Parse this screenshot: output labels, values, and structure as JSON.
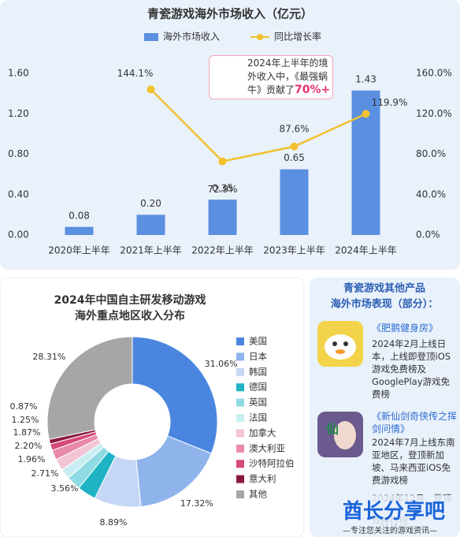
{
  "chart_data": [
    {
      "type": "bar",
      "title": "青瓷游戏海外市场收入（亿元）",
      "categories": [
        "2020年上半年",
        "2021年上半年",
        "2022年上半年",
        "2023年上半年",
        "2024年上半年"
      ],
      "series": [
        {
          "name": "海外市场收入",
          "type": "bar",
          "color": "#5b8fe0",
          "values": [
            0.08,
            0.2,
            0.35,
            0.65,
            1.43
          ],
          "value_labels": [
            "0.08",
            "0.20",
            "0.35",
            "0.65",
            "1.43"
          ]
        },
        {
          "name": "同比增长率",
          "type": "line",
          "axis": "y2",
          "color": "#f2c12e",
          "values": [
            null,
            144.1,
            72.9,
            87.6,
            119.9
          ],
          "value_labels": [
            null,
            "144.1%",
            "72.9%",
            "87.6%",
            "119.9%"
          ]
        }
      ],
      "ylim": [
        0,
        1.6
      ],
      "yticks": [
        {
          "value": 0,
          "label": "0.00"
        },
        {
          "value": 0.4,
          "label": "0.40"
        },
        {
          "value": 0.8,
          "label": "0.80"
        },
        {
          "value": 1.2,
          "label": "1.20"
        },
        {
          "value": 1.6,
          "label": "1.60"
        }
      ],
      "y2lim": [
        0,
        160
      ],
      "y2ticks": [
        {
          "value": 0,
          "label": "0.0%"
        },
        {
          "value": 40,
          "label": "40.0%"
        },
        {
          "value": 80,
          "label": "80.0%"
        },
        {
          "value": 120,
          "label": "120.0%"
        },
        {
          "value": 160,
          "label": "160.0%"
        }
      ],
      "grid": false,
      "legend": "top",
      "annotation": {
        "text": "2024年上半年的境外收入中，《最强蜗牛》贡献了",
        "highlight": "70%+"
      }
    },
    {
      "type": "pie",
      "title": [
        "2024年中国自主研发移动游戏",
        "海外重点地区收入分布"
      ],
      "categories": [
        "美国",
        "日本",
        "韩国",
        "德国",
        "英国",
        "法国",
        "加拿大",
        "澳大利亚",
        "沙特阿拉伯",
        "意大利",
        "其他"
      ],
      "values": [
        31.06,
        17.32,
        8.89,
        3.56,
        2.71,
        1.96,
        2.2,
        1.87,
        1.25,
        0.87,
        28.31
      ],
      "value_labels": [
        "31.06%",
        "17.32%",
        "8.89%",
        "3.56%",
        "2.71%",
        "1.96%",
        "2.20%",
        "1.87%",
        "1.25%",
        "0.87%",
        "28.31%"
      ],
      "colors": [
        "#4a86e0",
        "#8fb4ec",
        "#c5d7f5",
        "#1fb3c4",
        "#8fdbe3",
        "#c8eef2",
        "#f2c4d4",
        "#e88aa8",
        "#d64a7a",
        "#8b1a3a",
        "#a6a6a6"
      ],
      "legend": "right"
    }
  ],
  "side_panel": {
    "title": [
      "青瓷游戏其他产品",
      "海外市场表现（部分）："
    ],
    "items": [
      {
        "name": "《肥鹅健身房》",
        "text": "2024年2月上线日本，上线即登顶iOS游戏免费榜及GooglePlay游戏免费榜"
      },
      {
        "name": "《新仙剑奇侠传之挥剑问情》",
        "text": "2024年7月上线东南亚地区，登顶新加坡、马来西亚iOS免费游戏榜"
      },
      {
        "name": "2024年12月，登顶",
        "text": "戏排行榜"
      }
    ]
  },
  "watermark": {
    "title": "酋长分享吧",
    "subtitle": "—专注您关注的游戏资讯—"
  }
}
